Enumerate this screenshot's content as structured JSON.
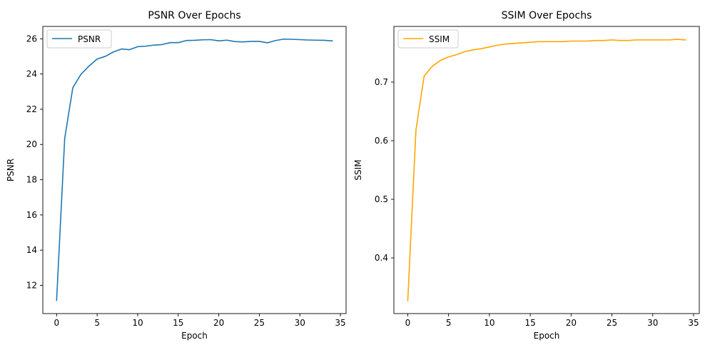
{
  "chart_data": [
    {
      "type": "line",
      "title": "PSNR Over Epochs",
      "xlabel": "Epoch",
      "ylabel": "PSNR",
      "xlim": [
        -1.7,
        35.7
      ],
      "ylim": [
        10.4,
        26.7
      ],
      "xticks": [
        0,
        5,
        10,
        15,
        20,
        25,
        30,
        35
      ],
      "yticks": [
        12,
        14,
        16,
        18,
        20,
        22,
        24,
        26
      ],
      "tick_decimals": 0,
      "grid": false,
      "legend": "upper-left",
      "series": [
        {
          "name": "PSNR",
          "color": "#1f77b4",
          "x": [
            0,
            1,
            2,
            3,
            4,
            5,
            6,
            7,
            8,
            9,
            10,
            11,
            12,
            13,
            14,
            15,
            16,
            17,
            18,
            19,
            20,
            21,
            22,
            23,
            24,
            25,
            26,
            27,
            28,
            29,
            30,
            31,
            32,
            33,
            34
          ],
          "values": [
            11.15,
            20.35,
            23.22,
            23.98,
            24.45,
            24.85,
            25.0,
            25.25,
            25.42,
            25.38,
            25.55,
            25.58,
            25.64,
            25.67,
            25.78,
            25.78,
            25.9,
            25.91,
            25.94,
            25.95,
            25.88,
            25.92,
            25.84,
            25.82,
            25.85,
            25.85,
            25.77,
            25.9,
            25.98,
            25.97,
            25.95,
            25.93,
            25.92,
            25.91,
            25.88
          ]
        }
      ]
    },
    {
      "type": "line",
      "title": "SSIM Over Epochs",
      "xlabel": "Epoch",
      "ylabel": "SSIM",
      "xlim": [
        -1.7,
        35.7
      ],
      "ylim": [
        0.305,
        0.795
      ],
      "xticks": [
        0,
        5,
        10,
        15,
        20,
        25,
        30,
        35
      ],
      "yticks": [
        0.4,
        0.5,
        0.6,
        0.7
      ],
      "tick_decimals": 1,
      "grid": false,
      "legend": "upper-left",
      "series": [
        {
          "name": "SSIM",
          "color": "#ffa500",
          "x": [
            0,
            1,
            2,
            3,
            4,
            5,
            6,
            7,
            8,
            9,
            10,
            11,
            12,
            13,
            14,
            15,
            16,
            17,
            18,
            19,
            20,
            21,
            22,
            23,
            24,
            25,
            26,
            27,
            28,
            29,
            30,
            31,
            32,
            33,
            34
          ],
          "values": [
            0.327,
            0.618,
            0.71,
            0.727,
            0.737,
            0.743,
            0.747,
            0.752,
            0.755,
            0.757,
            0.76,
            0.763,
            0.765,
            0.766,
            0.767,
            0.768,
            0.769,
            0.769,
            0.769,
            0.769,
            0.77,
            0.77,
            0.77,
            0.771,
            0.771,
            0.772,
            0.771,
            0.771,
            0.772,
            0.772,
            0.772,
            0.772,
            0.772,
            0.773,
            0.772
          ]
        }
      ]
    }
  ]
}
